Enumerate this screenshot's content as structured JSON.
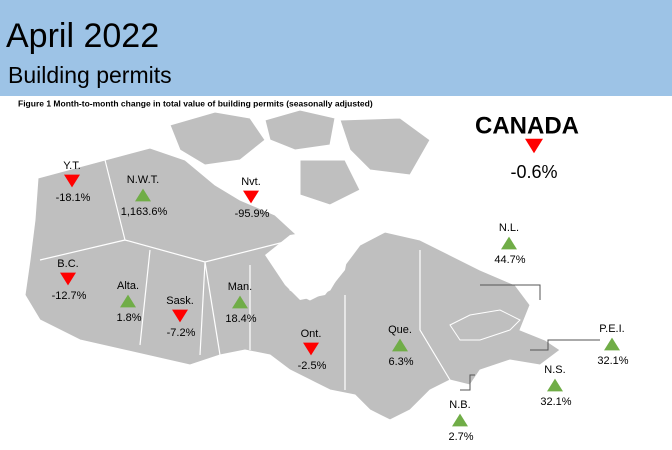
{
  "header": {
    "title": "April 2022",
    "subtitle": "Building permits"
  },
  "figure": {
    "caption": "Figure 1  Month-to-month change in total value of building permits (seasonally adjusted)"
  },
  "national": {
    "name": "CANADA",
    "change": "-0.6%"
  },
  "regions": [
    {
      "name": "Y.T.",
      "change": "-18.1%"
    },
    {
      "name": "N.W.T.",
      "change": "1,163.6%"
    },
    {
      "name": "Nvt.",
      "change": "-95.9%"
    },
    {
      "name": "B.C.",
      "change": "-12.7%"
    },
    {
      "name": "Alta.",
      "change": "1.8%"
    },
    {
      "name": "Sask.",
      "change": "-7.2%"
    },
    {
      "name": "Man.",
      "change": "18.4%"
    },
    {
      "name": "Ont.",
      "change": "-2.5%"
    },
    {
      "name": "Que.",
      "change": "6.3%"
    },
    {
      "name": "N.L.",
      "change": "44.7%"
    },
    {
      "name": "P.E.I.",
      "change": "32.1%"
    },
    {
      "name": "N.S.",
      "change": "32.1%"
    },
    {
      "name": "N.B.",
      "change": "2.7%"
    }
  ]
}
